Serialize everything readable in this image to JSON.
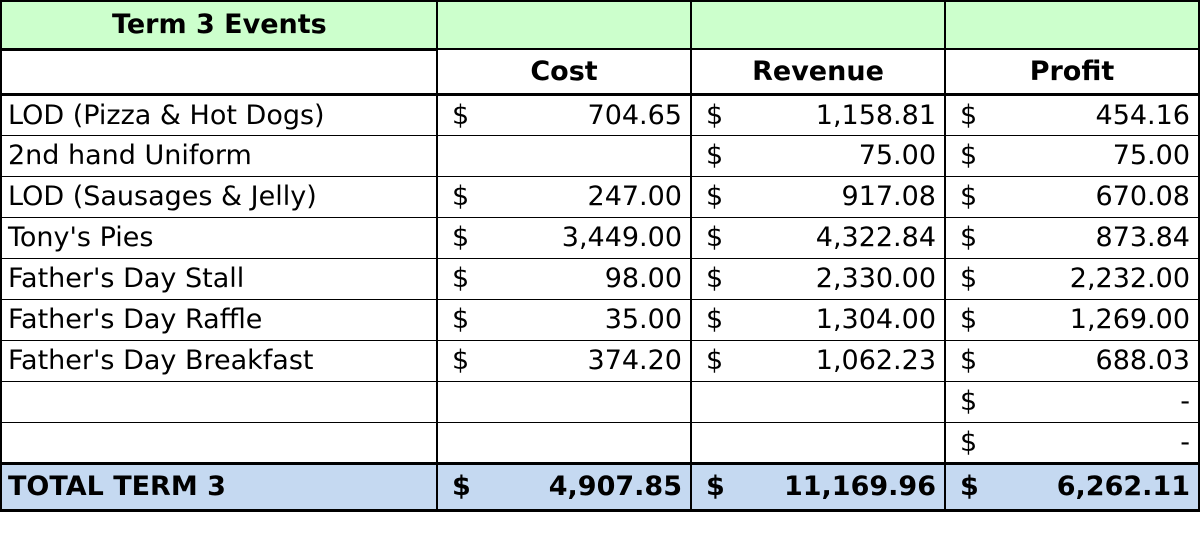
{
  "title": "Term 3 Events",
  "columns": [
    "Cost",
    "Revenue",
    "Profit"
  ],
  "currency_symbol": "$",
  "rows": [
    {
      "label": "LOD (Pizza & Hot Dogs)",
      "cost": "704.65",
      "revenue": "1,158.81",
      "profit": "454.16"
    },
    {
      "label": "2nd hand Uniform",
      "cost": "",
      "revenue": "75.00",
      "profit": "75.00"
    },
    {
      "label": "LOD (Sausages & Jelly)",
      "cost": "247.00",
      "revenue": "917.08",
      "profit": "670.08"
    },
    {
      "label": "Tony's Pies",
      "cost": "3,449.00",
      "revenue": "4,322.84",
      "profit": "873.84"
    },
    {
      "label": "Father's Day Stall",
      "cost": "98.00",
      "revenue": "2,330.00",
      "profit": "2,232.00"
    },
    {
      "label": "Father's Day Raffle",
      "cost": "35.00",
      "revenue": "1,304.00",
      "profit": "1,269.00"
    },
    {
      "label": "Father's Day Breakfast",
      "cost": "374.20",
      "revenue": "1,062.23",
      "profit": "688.03"
    },
    {
      "label": "",
      "cost": "",
      "revenue": "",
      "profit": "-"
    },
    {
      "label": "",
      "cost": "",
      "revenue": "",
      "profit": "-"
    }
  ],
  "total": {
    "label": "TOTAL TERM 3",
    "cost": "4,907.85",
    "revenue": "11,169.96",
    "profit": "6,262.11"
  },
  "colors": {
    "title_bg": "#ccffcc",
    "total_bg": "#c5d9f1"
  }
}
